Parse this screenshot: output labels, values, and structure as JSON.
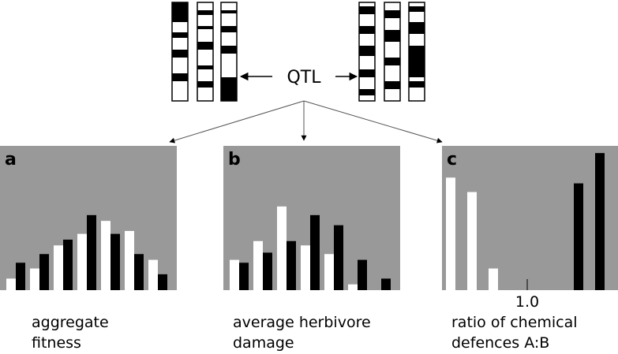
{
  "label": "QTL",
  "panels": [
    {
      "letter": "a",
      "caption": [
        "aggregate",
        "fitness"
      ],
      "white": [
        8,
        15,
        31,
        39,
        48,
        41,
        21
      ],
      "black": [
        19,
        25,
        35,
        52,
        39,
        25,
        11
      ]
    },
    {
      "letter": "b",
      "caption": [
        "average herbivore",
        "damage"
      ],
      "white": [
        21,
        34,
        58,
        31,
        25,
        4,
        0
      ],
      "black": [
        19,
        26,
        34,
        52,
        45,
        21,
        8
      ]
    },
    {
      "letter": "c",
      "caption": [
        "ratio of chemical",
        "defences A:B"
      ],
      "white": [
        78,
        68,
        15,
        null,
        null,
        null,
        null,
        null
      ],
      "black": [
        null,
        null,
        null,
        null,
        null,
        null,
        74,
        95
      ],
      "tick": {
        "value": 1,
        "label": "1.0"
      }
    }
  ]
}
